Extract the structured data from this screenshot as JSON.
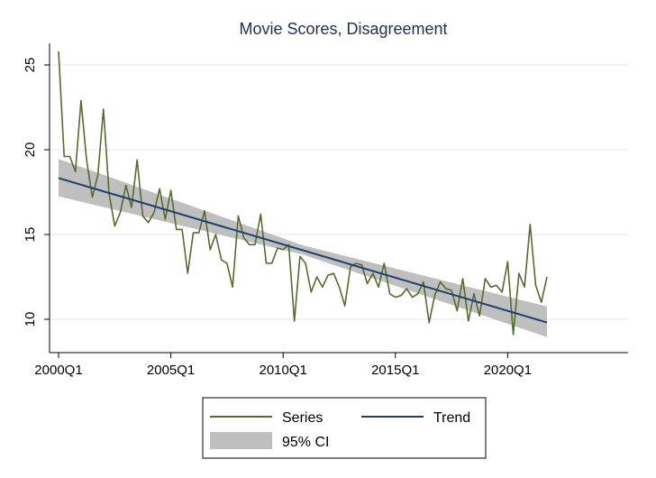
{
  "colors": {
    "series": "#556b2f",
    "trend": "#1f3f6e",
    "ci": "#bfbfbf",
    "grid": "#e6e6e6",
    "title": "#1f2f4f"
  },
  "chart_data": {
    "type": "line",
    "title": "Movie Scores, Disagreement",
    "xlabel": "",
    "ylabel": "",
    "xlim": [
      2000.0,
      2021.75
    ],
    "ylim": [
      8.5,
      26.5
    ],
    "grid": true,
    "legend_position": "bottom",
    "x_ticks": [
      {
        "value": 2000.0,
        "label": "2000Q1"
      },
      {
        "value": 2005.0,
        "label": "2005Q1"
      },
      {
        "value": 2010.0,
        "label": "2010Q1"
      },
      {
        "value": 2015.0,
        "label": "2015Q1"
      },
      {
        "value": 2020.0,
        "label": "2020Q1"
      }
    ],
    "y_ticks": [
      {
        "value": 10,
        "label": "10"
      },
      {
        "value": 15,
        "label": "15"
      },
      {
        "value": 20,
        "label": "20"
      },
      {
        "value": 25,
        "label": "25"
      }
    ],
    "series": [
      {
        "name": "Series",
        "x": [
          2000.0,
          2000.25,
          2000.5,
          2000.75,
          2001.0,
          2001.25,
          2001.5,
          2001.75,
          2002.0,
          2002.25,
          2002.5,
          2002.75,
          2003.0,
          2003.25,
          2003.5,
          2003.75,
          2004.0,
          2004.25,
          2004.5,
          2004.75,
          2005.0,
          2005.25,
          2005.5,
          2005.75,
          2006.0,
          2006.25,
          2006.5,
          2006.75,
          2007.0,
          2007.25,
          2007.5,
          2007.75,
          2008.0,
          2008.25,
          2008.5,
          2008.75,
          2009.0,
          2009.25,
          2009.5,
          2009.75,
          2010.0,
          2010.25,
          2010.5,
          2010.75,
          2011.0,
          2011.25,
          2011.5,
          2011.75,
          2012.0,
          2012.25,
          2012.5,
          2012.75,
          2013.0,
          2013.25,
          2013.5,
          2013.75,
          2014.0,
          2014.25,
          2014.5,
          2014.75,
          2015.0,
          2015.25,
          2015.5,
          2015.75,
          2016.0,
          2016.25,
          2016.5,
          2016.75,
          2017.0,
          2017.25,
          2017.5,
          2017.75,
          2018.0,
          2018.25,
          2018.5,
          2018.75,
          2019.0,
          2019.25,
          2019.5,
          2019.75,
          2020.0,
          2020.25,
          2020.5,
          2020.75,
          2021.0,
          2021.25,
          2021.5,
          2021.75
        ],
        "values": [
          25.8,
          19.6,
          19.6,
          18.7,
          22.9,
          19.4,
          17.2,
          18.5,
          22.4,
          17.4,
          15.5,
          16.3,
          17.9,
          16.6,
          19.4,
          16.1,
          15.7,
          16.3,
          17.7,
          15.9,
          17.6,
          15.3,
          15.3,
          12.7,
          15.1,
          15.1,
          16.4,
          14.1,
          15.0,
          13.5,
          13.3,
          11.9,
          16.1,
          14.8,
          14.4,
          14.4,
          16.2,
          13.3,
          13.3,
          14.2,
          14.1,
          14.4,
          9.9,
          13.7,
          13.3,
          11.6,
          12.5,
          11.9,
          12.6,
          12.7,
          11.9,
          10.8,
          13.1,
          13.3,
          13.2,
          12.1,
          12.7,
          11.9,
          13.3,
          11.5,
          11.3,
          11.4,
          11.8,
          11.3,
          11.5,
          12.2,
          9.8,
          11.4,
          12.2,
          11.8,
          11.7,
          10.5,
          12.4,
          9.9,
          11.5,
          10.2,
          12.4,
          11.9,
          12.0,
          11.6,
          13.4,
          9.1,
          12.7,
          11.9,
          15.6,
          12.0,
          11.0,
          12.5
        ]
      },
      {
        "name": "Trend",
        "x": [
          2000.0,
          2021.75
        ],
        "values": [
          18.33,
          9.81
        ]
      }
    ],
    "ci_band": {
      "name": "95% CI",
      "x": [
        2000.0,
        2010.875,
        2021.75
      ],
      "lower": [
        17.25,
        13.82,
        8.95
      ],
      "upper": [
        19.45,
        14.36,
        10.75
      ]
    }
  }
}
